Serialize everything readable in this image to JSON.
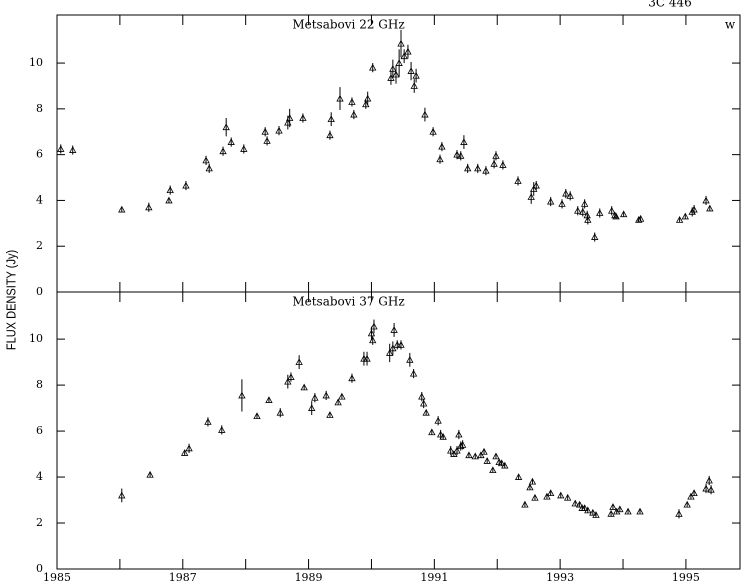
{
  "source": "3C 446",
  "ylabel": "FLUX DENSITY (Jy)",
  "chart_data": [
    {
      "type": "scatter",
      "title": "Metsabovi 22 GHz",
      "annotation": "w",
      "color": "#000000",
      "marker": "triangle",
      "xlim": [
        1985,
        1995.86
      ],
      "ylim": [
        0,
        12.1
      ],
      "xticks": [
        1985,
        1987,
        1989,
        1991,
        1993,
        1995
      ],
      "xminor_ticks": [
        1986,
        1988,
        1990,
        1992,
        1994
      ],
      "xtick_labels": false,
      "yticks": [
        0,
        2,
        4,
        6,
        8,
        10
      ],
      "x": [
        1985.06,
        1985.25,
        1986.03,
        1986.46,
        1986.78,
        1986.8,
        1987.05,
        1987.37,
        1987.42,
        1987.64,
        1987.69,
        1987.77,
        1987.97,
        1988.31,
        1988.34,
        1988.53,
        1988.67,
        1988.7,
        1988.91,
        1989.34,
        1989.36,
        1989.5,
        1989.69,
        1989.72,
        1989.91,
        1989.94,
        1990.02,
        1990.31,
        1990.34,
        1990.39,
        1990.44,
        1990.47,
        1990.52,
        1990.58,
        1990.63,
        1990.68,
        1990.71,
        1990.85,
        1990.98,
        1991.09,
        1991.12,
        1991.36,
        1991.42,
        1991.47,
        1991.53,
        1991.69,
        1991.82,
        1991.95,
        1991.98,
        1992.09,
        1992.33,
        1992.54,
        1992.58,
        1992.62,
        1992.85,
        1993.03,
        1993.09,
        1993.16,
        1993.28,
        1993.36,
        1993.39,
        1993.43,
        1993.44,
        1993.55,
        1993.63,
        1993.82,
        1993.87,
        1993.89,
        1994.01,
        1994.25,
        1994.28,
        1994.9,
        1994.99,
        1995.1,
        1995.13,
        1995.32,
        1995.38
      ],
      "values": [
        6.25,
        6.2,
        3.6,
        3.7,
        4.0,
        4.45,
        4.65,
        5.75,
        5.4,
        6.15,
        7.2,
        6.55,
        6.25,
        7.0,
        6.6,
        7.05,
        7.4,
        7.6,
        7.6,
        6.85,
        7.55,
        8.45,
        8.3,
        7.75,
        8.2,
        8.45,
        9.8,
        9.35,
        9.75,
        9.5,
        10.0,
        10.85,
        10.3,
        10.5,
        9.65,
        9.0,
        9.45,
        7.75,
        7.0,
        5.8,
        6.35,
        6.0,
        5.95,
        6.55,
        5.4,
        5.4,
        5.3,
        5.6,
        5.95,
        5.55,
        4.85,
        4.15,
        4.5,
        4.65,
        3.95,
        3.85,
        4.3,
        4.2,
        3.55,
        3.5,
        3.85,
        3.35,
        3.15,
        2.4,
        3.45,
        3.55,
        3.35,
        3.3,
        3.4,
        3.15,
        3.2,
        3.15,
        3.3,
        3.5,
        3.6,
        4.0,
        3.65
      ],
      "errors": [
        0.2,
        0.2,
        0.1,
        0.2,
        0.1,
        0.2,
        0.2,
        0.2,
        0.2,
        0.2,
        0.4,
        0.2,
        0.2,
        0.2,
        0.2,
        0.2,
        0.3,
        0.4,
        0.2,
        0.2,
        0.3,
        0.5,
        0.2,
        0.2,
        0.2,
        0.3,
        0.2,
        0.3,
        0.4,
        0.4,
        0.6,
        0.6,
        0.3,
        0.3,
        0.4,
        0.3,
        0.3,
        0.3,
        0.2,
        0.2,
        0.2,
        0.2,
        0.2,
        0.3,
        0.2,
        0.2,
        0.2,
        0.2,
        0.2,
        0.2,
        0.2,
        0.3,
        0.3,
        0.2,
        0.2,
        0.2,
        0.2,
        0.2,
        0.2,
        0.2,
        0.2,
        0.2,
        0.2,
        0.2,
        0.2,
        0.2,
        0.1,
        0.1,
        0.1,
        0.1,
        0.1,
        0.1,
        0.1,
        0.2,
        0.2,
        0.2,
        0.1
      ]
    },
    {
      "type": "scatter",
      "title": "Metsabovi 37 GHz",
      "color": "#000000",
      "marker": "triangle",
      "xlim": [
        1985,
        1995.86
      ],
      "ylim": [
        0,
        12.05
      ],
      "xticks": [
        1985,
        1987,
        1989,
        1991,
        1993,
        1995
      ],
      "xminor_ticks": [
        1986,
        1988,
        1990,
        1992,
        1994
      ],
      "xtick_labels": true,
      "yticks": [
        0,
        2,
        4,
        6,
        8,
        10
      ],
      "x": [
        1986.03,
        1986.48,
        1987.03,
        1987.1,
        1987.4,
        1987.62,
        1987.94,
        1988.18,
        1988.37,
        1988.55,
        1988.67,
        1988.72,
        1988.85,
        1988.93,
        1989.05,
        1989.1,
        1989.28,
        1989.34,
        1989.47,
        1989.53,
        1989.69,
        1989.88,
        1989.93,
        1990.0,
        1990.04,
        1990.02,
        1990.29,
        1990.34,
        1990.36,
        1990.41,
        1990.47,
        1990.61,
        1990.67,
        1990.8,
        1990.83,
        1990.87,
        1990.96,
        1991.06,
        1991.1,
        1991.14,
        1991.26,
        1991.31,
        1991.36,
        1991.39,
        1991.42,
        1991.45,
        1991.55,
        1991.65,
        1991.74,
        1991.79,
        1991.84,
        1991.93,
        1991.98,
        1992.03,
        1992.07,
        1992.12,
        1992.34,
        1992.44,
        1992.52,
        1992.56,
        1992.6,
        1992.79,
        1992.85,
        1993.01,
        1993.12,
        1993.24,
        1993.31,
        1993.35,
        1993.39,
        1993.44,
        1993.52,
        1993.57,
        1993.81,
        1993.84,
        1993.9,
        1993.95,
        1994.08,
        1994.27,
        1994.89,
        1995.02,
        1995.08,
        1995.13,
        1995.32,
        1995.37,
        1995.4
      ],
      "values": [
        3.2,
        4.1,
        5.05,
        5.25,
        6.4,
        6.05,
        7.55,
        6.65,
        7.35,
        6.8,
        8.15,
        8.35,
        9.0,
        7.9,
        7.0,
        7.45,
        7.55,
        6.7,
        7.25,
        7.5,
        8.3,
        9.15,
        9.15,
        10.25,
        10.55,
        9.95,
        9.4,
        9.6,
        10.4,
        9.75,
        9.75,
        9.1,
        8.5,
        7.5,
        7.2,
        6.8,
        5.95,
        6.45,
        5.85,
        5.75,
        5.15,
        5.0,
        5.15,
        5.85,
        5.35,
        5.4,
        4.95,
        4.9,
        4.95,
        5.1,
        4.7,
        4.3,
        4.9,
        4.65,
        4.6,
        4.5,
        4.0,
        2.8,
        3.55,
        3.8,
        3.1,
        3.15,
        3.3,
        3.2,
        3.1,
        2.85,
        2.8,
        2.65,
        2.65,
        2.55,
        2.45,
        2.35,
        2.4,
        2.7,
        2.5,
        2.6,
        2.5,
        2.5,
        2.4,
        2.8,
        3.15,
        3.3,
        3.5,
        3.85,
        3.45
      ],
      "errors": [
        0.3,
        0.1,
        0.1,
        0.2,
        0.2,
        0.2,
        0.7,
        0.1,
        0.1,
        0.2,
        0.3,
        0.2,
        0.3,
        0.1,
        0.3,
        0.2,
        0.2,
        0.1,
        0.1,
        0.1,
        0.2,
        0.3,
        0.3,
        0.3,
        0.3,
        0.2,
        0.4,
        0.3,
        0.3,
        0.2,
        0.2,
        0.3,
        0.2,
        0.2,
        0.2,
        0.1,
        0.1,
        0.2,
        0.2,
        0.1,
        0.2,
        0.1,
        0.2,
        0.2,
        0.2,
        0.2,
        0.1,
        0.1,
        0.1,
        0.1,
        0.1,
        0.1,
        0.1,
        0.1,
        0.1,
        0.1,
        0.1,
        0.1,
        0.1,
        0.1,
        0.1,
        0.1,
        0.1,
        0.1,
        0.1,
        0.1,
        0.1,
        0.1,
        0.1,
        0.1,
        0.1,
        0.1,
        0.1,
        0.1,
        0.1,
        0.1,
        0.1,
        0.1,
        0.2,
        0.1,
        0.1,
        0.1,
        0.2,
        0.2,
        0.2
      ]
    }
  ]
}
